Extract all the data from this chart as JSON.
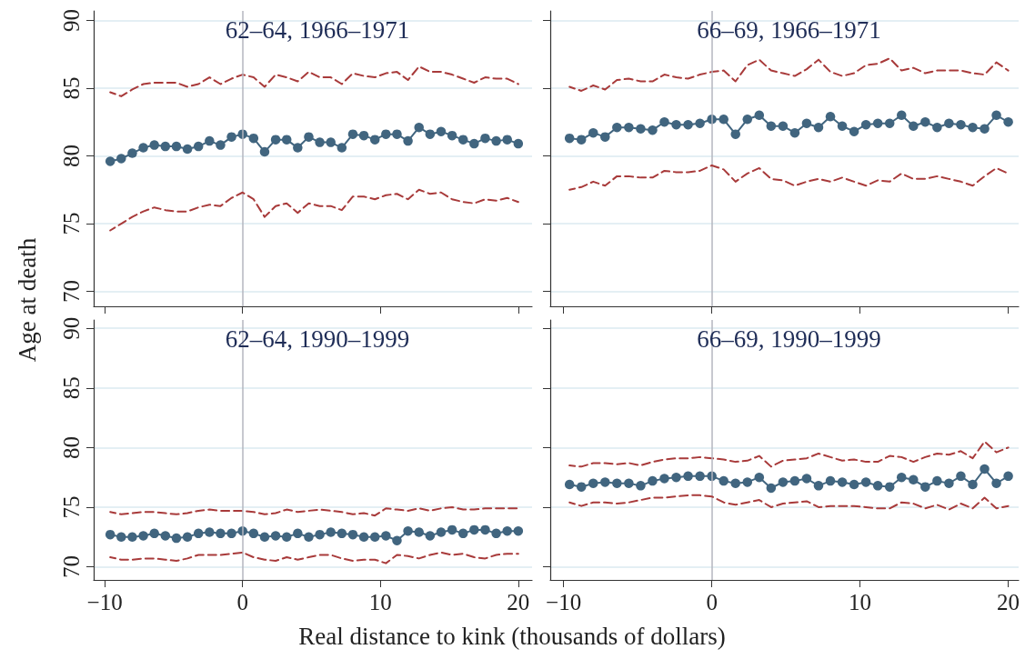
{
  "chart_data": [
    {
      "type": "line",
      "title": "62–64, 1966–1971",
      "ylabel": "Age at death",
      "x": [
        -9.6,
        -8.8,
        -8,
        -7.2,
        -6.4,
        -5.6,
        -4.8,
        -4,
        -3.2,
        -2.4,
        -1.6,
        -0.8,
        0,
        0.8,
        1.6,
        2.4,
        3.2,
        4,
        4.8,
        5.6,
        6.4,
        7.2,
        8,
        8.8,
        9.6,
        10.4,
        11.2,
        12,
        12.8,
        13.6,
        14.4,
        15.2,
        16,
        16.8,
        17.6,
        18.4,
        19.2,
        20
      ],
      "series": [
        {
          "color": "#41657f",
          "marker": "circle",
          "line_style": "solid",
          "values": [
            79.6,
            79.8,
            80.2,
            80.6,
            80.8,
            80.7,
            80.7,
            80.5,
            80.7,
            81.1,
            80.8,
            81.4,
            81.6,
            81.3,
            80.3,
            81.2,
            81.2,
            80.6,
            81.4,
            81.0,
            81.0,
            80.6,
            81.6,
            81.5,
            81.2,
            81.6,
            81.6,
            81.1,
            82.1,
            81.6,
            81.8,
            81.5,
            81.2,
            80.9,
            81.3,
            81.1,
            81.2,
            80.9
          ]
        },
        {
          "color": "#a83a3a",
          "marker": "none",
          "line_style": "dashed",
          "values": [
            84.7,
            84.4,
            84.9,
            85.3,
            85.4,
            85.4,
            85.4,
            85.1,
            85.3,
            85.8,
            85.3,
            85.7,
            86.0,
            85.8,
            85.1,
            86.0,
            85.8,
            85.5,
            86.2,
            85.8,
            85.8,
            85.3,
            86.1,
            85.9,
            85.8,
            86.1,
            86.2,
            85.6,
            86.6,
            86.2,
            86.2,
            86.0,
            85.7,
            85.4,
            85.8,
            85.7,
            85.7,
            85.3
          ]
        },
        {
          "color": "#a83a3a",
          "marker": "none",
          "line_style": "dashed",
          "values": [
            74.5,
            75.0,
            75.5,
            75.9,
            76.2,
            76.0,
            75.9,
            75.9,
            76.2,
            76.4,
            76.3,
            76.9,
            77.3,
            76.8,
            75.5,
            76.3,
            76.5,
            75.8,
            76.5,
            76.3,
            76.3,
            76.0,
            77.0,
            77.0,
            76.8,
            77.1,
            77.2,
            76.8,
            77.5,
            77.2,
            77.3,
            76.8,
            76.6,
            76.5,
            76.8,
            76.7,
            76.9,
            76.6
          ]
        }
      ],
      "xlim": [
        -10.8,
        21
      ],
      "xticks": [
        -10,
        0,
        10,
        20
      ],
      "ylim": [
        68.9,
        90.7
      ],
      "yticks": [
        70,
        75,
        80,
        85,
        90
      ],
      "grid": "y",
      "tick_labels": "y",
      "ref_lines": [
        {
          "axis": "x",
          "value": 0,
          "color": "#b4b6bf"
        }
      ]
    },
    {
      "type": "line",
      "title": "66–69, 1966–1971",
      "x": [
        -9.6,
        -8.8,
        -8,
        -7.2,
        -6.4,
        -5.6,
        -4.8,
        -4,
        -3.2,
        -2.4,
        -1.6,
        -0.8,
        0,
        0.8,
        1.6,
        2.4,
        3.2,
        4,
        4.8,
        5.6,
        6.4,
        7.2,
        8,
        8.8,
        9.6,
        10.4,
        11.2,
        12,
        12.8,
        13.6,
        14.4,
        15.2,
        16,
        16.8,
        17.6,
        18.4,
        19.2,
        20
      ],
      "series": [
        {
          "color": "#41657f",
          "marker": "circle",
          "line_style": "solid",
          "values": [
            81.3,
            81.2,
            81.7,
            81.4,
            82.1,
            82.1,
            82.0,
            81.9,
            82.5,
            82.3,
            82.3,
            82.4,
            82.7,
            82.7,
            81.6,
            82.7,
            83.0,
            82.2,
            82.2,
            81.7,
            82.4,
            82.1,
            82.9,
            82.2,
            81.8,
            82.3,
            82.4,
            82.4,
            83.0,
            82.2,
            82.5,
            82.1,
            82.4,
            82.3,
            82.1,
            82.0,
            83.0,
            82.5
          ]
        },
        {
          "color": "#a83a3a",
          "marker": "none",
          "line_style": "dashed",
          "values": [
            85.1,
            84.8,
            85.2,
            84.9,
            85.6,
            85.7,
            85.5,
            85.5,
            86.0,
            85.8,
            85.7,
            86.0,
            86.2,
            86.3,
            85.5,
            86.7,
            87.1,
            86.3,
            86.1,
            85.9,
            86.4,
            87.1,
            86.2,
            85.9,
            86.1,
            86.7,
            86.8,
            87.2,
            86.3,
            86.5,
            86.1,
            86.3,
            86.3,
            86.3,
            86.1,
            86.0,
            86.9,
            86.3
          ]
        },
        {
          "color": "#a83a3a",
          "marker": "none",
          "line_style": "dashed",
          "values": [
            77.5,
            77.7,
            78.1,
            77.8,
            78.5,
            78.5,
            78.4,
            78.4,
            78.9,
            78.8,
            78.8,
            78.9,
            79.3,
            79.0,
            78.1,
            78.7,
            79.1,
            78.3,
            78.2,
            77.8,
            78.1,
            78.3,
            78.1,
            78.4,
            78.1,
            77.8,
            78.2,
            78.1,
            78.7,
            78.3,
            78.3,
            78.5,
            78.3,
            78.1,
            77.8,
            78.5,
            79.1,
            78.7
          ]
        }
      ],
      "xlim": [
        -10.9,
        20.7
      ],
      "xticks": [
        -10,
        0,
        10,
        20
      ],
      "ylim": [
        68.9,
        90.7
      ],
      "yticks": [
        70,
        75,
        80,
        85,
        90
      ],
      "grid": "y",
      "tick_labels": false,
      "ref_lines": [
        {
          "axis": "x",
          "value": 0,
          "color": "#b4b6bf"
        }
      ]
    },
    {
      "type": "line",
      "title": "62–64, 1990–1999",
      "xlabel": "Real distance to kink (thousands of dollars)",
      "x": [
        -9.6,
        -8.8,
        -8,
        -7.2,
        -6.4,
        -5.6,
        -4.8,
        -4,
        -3.2,
        -2.4,
        -1.6,
        -0.8,
        0,
        0.8,
        1.6,
        2.4,
        3.2,
        4,
        4.8,
        5.6,
        6.4,
        7.2,
        8,
        8.8,
        9.6,
        10.4,
        11.2,
        12,
        12.8,
        13.6,
        14.4,
        15.2,
        16,
        16.8,
        17.6,
        18.4,
        19.2,
        20
      ],
      "series": [
        {
          "color": "#41657f",
          "marker": "circle",
          "line_style": "solid",
          "values": [
            72.7,
            72.5,
            72.5,
            72.6,
            72.8,
            72.6,
            72.4,
            72.5,
            72.8,
            72.9,
            72.8,
            72.8,
            73.0,
            72.8,
            72.5,
            72.6,
            72.5,
            72.8,
            72.5,
            72.7,
            72.9,
            72.8,
            72.7,
            72.5,
            72.5,
            72.6,
            72.2,
            73.0,
            72.9,
            72.6,
            72.9,
            73.1,
            72.8,
            73.1,
            73.1,
            72.8,
            73.0,
            73.0
          ]
        },
        {
          "color": "#a83a3a",
          "marker": "none",
          "line_style": "dashed",
          "values": [
            74.6,
            74.4,
            74.5,
            74.6,
            74.6,
            74.5,
            74.4,
            74.5,
            74.7,
            74.8,
            74.7,
            74.7,
            74.7,
            74.6,
            74.4,
            74.5,
            74.8,
            74.6,
            74.7,
            74.8,
            74.7,
            74.6,
            74.4,
            74.5,
            74.3,
            74.9,
            74.8,
            74.7,
            74.9,
            74.7,
            74.9,
            75.0,
            74.8,
            74.8,
            74.9,
            74.9,
            74.9,
            74.9
          ]
        },
        {
          "color": "#a83a3a",
          "marker": "none",
          "line_style": "dashed",
          "values": [
            70.8,
            70.6,
            70.6,
            70.7,
            70.7,
            70.6,
            70.5,
            70.7,
            71.0,
            71.0,
            71.0,
            71.1,
            71.2,
            70.8,
            70.6,
            70.5,
            70.8,
            70.6,
            70.8,
            71.0,
            71.0,
            70.7,
            70.5,
            70.6,
            70.6,
            70.3,
            71.0,
            70.9,
            70.7,
            71.0,
            71.2,
            71.0,
            71.1,
            70.8,
            70.7,
            71.0,
            71.1,
            71.1
          ]
        }
      ],
      "xlim": [
        -10.8,
        21
      ],
      "xticks": [
        -10,
        0,
        10,
        20
      ],
      "ylim": [
        68.9,
        90.7
      ],
      "yticks": [
        70,
        75,
        80,
        85,
        90
      ],
      "grid": "y",
      "ref_lines": [
        {
          "axis": "x",
          "value": 0,
          "color": "#b4b6bf"
        }
      ]
    },
    {
      "type": "line",
      "title": "66–69, 1990–1999",
      "x": [
        -9.6,
        -8.8,
        -8,
        -7.2,
        -6.4,
        -5.6,
        -4.8,
        -4,
        -3.2,
        -2.4,
        -1.6,
        -0.8,
        0,
        0.8,
        1.6,
        2.4,
        3.2,
        4,
        4.8,
        5.6,
        6.4,
        7.2,
        8,
        8.8,
        9.6,
        10.4,
        11.2,
        12,
        12.8,
        13.6,
        14.4,
        15.2,
        16,
        16.8,
        17.6,
        18.4,
        19.2,
        20
      ],
      "series": [
        {
          "color": "#41657f",
          "marker": "circle",
          "line_style": "solid",
          "values": [
            76.9,
            76.7,
            77.0,
            77.1,
            77.0,
            77.0,
            76.8,
            77.2,
            77.4,
            77.5,
            77.6,
            77.6,
            77.6,
            77.2,
            77.0,
            77.1,
            77.5,
            76.6,
            77.1,
            77.2,
            77.4,
            76.8,
            77.2,
            77.1,
            76.9,
            77.1,
            76.8,
            76.7,
            77.5,
            77.3,
            76.7,
            77.2,
            77.0,
            77.6,
            76.9,
            78.2,
            77.0,
            77.6
          ]
        },
        {
          "color": "#a83a3a",
          "marker": "none",
          "line_style": "dashed",
          "values": [
            78.5,
            78.4,
            78.7,
            78.7,
            78.6,
            78.7,
            78.5,
            78.8,
            79.0,
            79.1,
            79.1,
            79.2,
            79.1,
            79.0,
            78.8,
            78.9,
            79.3,
            78.4,
            78.9,
            79.0,
            79.1,
            79.5,
            79.2,
            78.9,
            79.0,
            78.8,
            78.8,
            79.3,
            79.2,
            78.8,
            79.2,
            79.5,
            79.4,
            79.7,
            79.1,
            80.5,
            79.6,
            80.0
          ]
        },
        {
          "color": "#a83a3a",
          "marker": "none",
          "line_style": "dashed",
          "values": [
            75.4,
            75.1,
            75.4,
            75.4,
            75.3,
            75.4,
            75.6,
            75.8,
            75.8,
            75.9,
            76.0,
            76.0,
            75.9,
            75.4,
            75.2,
            75.4,
            75.6,
            75.0,
            75.3,
            75.4,
            75.5,
            75.0,
            75.1,
            75.1,
            75.1,
            75.0,
            74.9,
            74.9,
            75.4,
            75.3,
            74.9,
            75.2,
            74.8,
            75.3,
            74.9,
            75.8,
            74.9,
            75.1
          ]
        }
      ],
      "xlim": [
        -10.9,
        20.7
      ],
      "xticks": [
        -10,
        0,
        10,
        20
      ],
      "ylim": [
        68.9,
        90.7
      ],
      "yticks": [
        70,
        75,
        80,
        85,
        90
      ],
      "grid": "y",
      "tick_labels": "x",
      "ref_lines": [
        {
          "axis": "x",
          "value": 0,
          "color": "#b4b6bf"
        }
      ]
    }
  ]
}
